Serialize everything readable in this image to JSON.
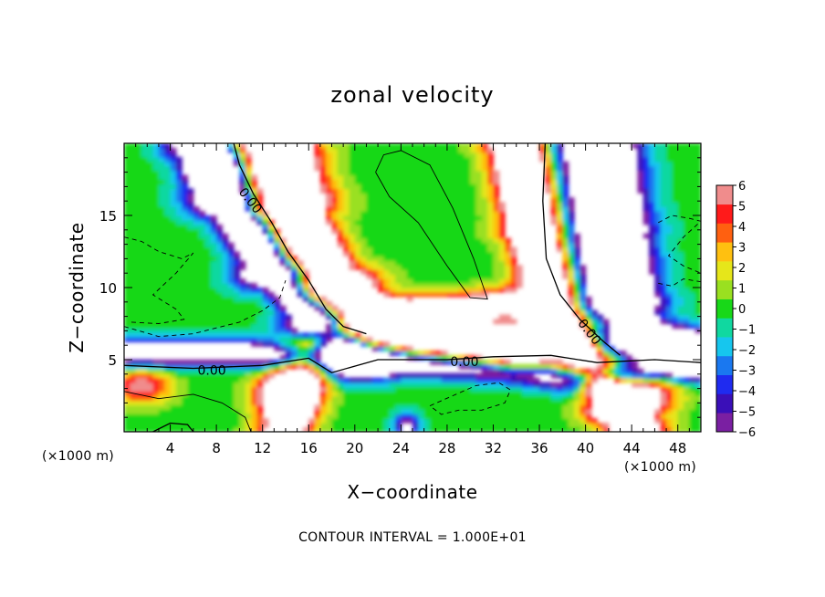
{
  "chart_data": {
    "type": "heatmap",
    "title": "zonal velocity",
    "xlabel": "X−coordinate",
    "ylabel": "Z−coordinate",
    "x_unit_label_left": "(×1000 m)",
    "x_unit_label_right": "(×1000 m)",
    "footer": "CONTOUR INTERVAL = 1.000E+01",
    "xlim": [
      0,
      50
    ],
    "ylim": [
      0,
      20
    ],
    "x_ticks": [
      4,
      8,
      12,
      16,
      20,
      24,
      28,
      32,
      36,
      40,
      44,
      48
    ],
    "x_tick_labels": [
      "4",
      "8",
      "12",
      "16",
      "20",
      "24",
      "28",
      "32",
      "36",
      "40",
      "44",
      "48"
    ],
    "y_ticks": [
      5,
      10,
      15
    ],
    "y_tick_labels": [
      "5",
      "10",
      "15"
    ],
    "colorbar": {
      "range": [
        -6,
        6
      ],
      "tick_values": [
        6,
        5,
        4,
        3,
        2,
        1,
        0,
        -1,
        -2,
        -3,
        -4,
        -5,
        -6
      ],
      "tick_labels": [
        "6",
        "5",
        "4",
        "3",
        "2",
        "1",
        "0",
        "−1",
        "−2",
        "−3",
        "−4",
        "−5",
        "−6"
      ],
      "colors": [
        "#7a1fa2",
        "#3a0fb8",
        "#1f2bf0",
        "#1a78f0",
        "#16c6ee",
        "#10d8a0",
        "#18d818",
        "#9ae020",
        "#e6e61a",
        "#ffc010",
        "#ff6010",
        "#ff1a1a",
        "#f08c8c"
      ],
      "over_under_color": "#ffffff"
    },
    "contour_labels": [
      {
        "text": "0.00",
        "x": 10.9,
        "y": 16.0,
        "angle": 52
      },
      {
        "text": "0.00",
        "x": 7.6,
        "y": 4.2,
        "angle": 0
      },
      {
        "text": "0.00",
        "x": 29.5,
        "y": 4.8,
        "angle": 0
      },
      {
        "text": "0.00",
        "x": 40.3,
        "y": 6.9,
        "angle": 52
      }
    ]
  }
}
